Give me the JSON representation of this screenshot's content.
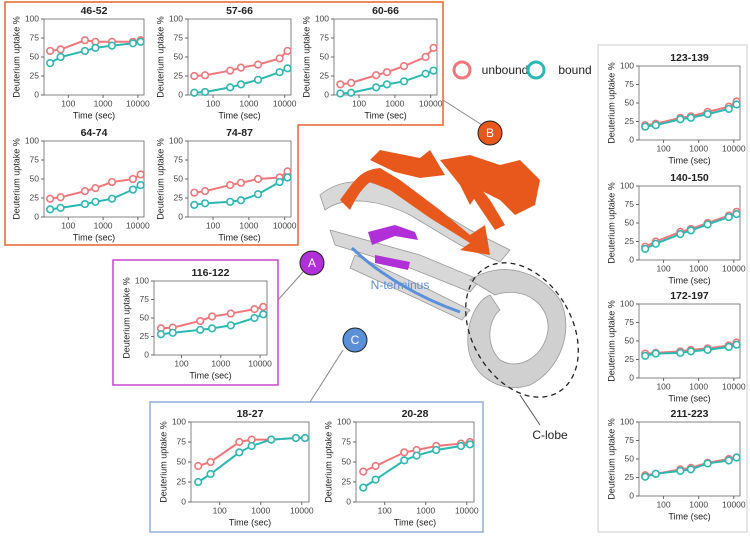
{
  "chart_data": [
    {
      "type": "line",
      "title": "46-52",
      "xlabel": "Time (sec)",
      "ylabel": "Deuterium uptake %",
      "log_x": true,
      "x": [
        30,
        60,
        300,
        600,
        1800,
        7200,
        12000
      ],
      "xlim": [
        20,
        15000
      ],
      "xticks": [
        100,
        1000,
        10000
      ],
      "ylim": [
        0,
        100
      ],
      "yticks": [
        0,
        25,
        50,
        75,
        100
      ],
      "series": [
        {
          "name": "unbound",
          "color": "#f0767a",
          "values": [
            58,
            60,
            72,
            70,
            70,
            70,
            72
          ]
        },
        {
          "name": "bound",
          "color": "#2bb8b2",
          "values": [
            42,
            50,
            58,
            62,
            65,
            68,
            70
          ]
        }
      ]
    },
    {
      "type": "line",
      "title": "57-66",
      "xlabel": "Time (sec)",
      "ylabel": "Deuterium uptake %",
      "log_x": true,
      "x": [
        30,
        60,
        300,
        600,
        1800,
        7200,
        12000
      ],
      "xlim": [
        20,
        15000
      ],
      "xticks": [
        100,
        1000,
        10000
      ],
      "ylim": [
        0,
        100
      ],
      "yticks": [
        0,
        25,
        50,
        75,
        100
      ],
      "series": [
        {
          "name": "unbound",
          "color": "#f0767a",
          "values": [
            25,
            26,
            32,
            36,
            40,
            48,
            58
          ]
        },
        {
          "name": "bound",
          "color": "#2bb8b2",
          "values": [
            3,
            4,
            10,
            14,
            20,
            30,
            35
          ]
        }
      ]
    },
    {
      "type": "line",
      "title": "60-66",
      "xlabel": "Time (sec)",
      "ylabel": "Deuterium uptake %",
      "log_x": true,
      "x": [
        30,
        60,
        300,
        600,
        1800,
        7200,
        12000
      ],
      "xlim": [
        20,
        15000
      ],
      "xticks": [
        100,
        1000,
        10000
      ],
      "ylim": [
        0,
        100
      ],
      "yticks": [
        0,
        25,
        50,
        75,
        100
      ],
      "series": [
        {
          "name": "unbound",
          "color": "#f0767a",
          "values": [
            14,
            16,
            26,
            30,
            38,
            50,
            62
          ]
        },
        {
          "name": "bound",
          "color": "#2bb8b2",
          "values": [
            2,
            3,
            10,
            14,
            18,
            28,
            32
          ]
        }
      ]
    },
    {
      "type": "line",
      "title": "64-74",
      "xlabel": "Time (sec)",
      "ylabel": "Deuterium uptake %",
      "log_x": true,
      "x": [
        30,
        60,
        300,
        600,
        1800,
        7200,
        12000
      ],
      "xlim": [
        20,
        15000
      ],
      "xticks": [
        100,
        1000,
        10000
      ],
      "ylim": [
        0,
        100
      ],
      "yticks": [
        0,
        25,
        50,
        75,
        100
      ],
      "series": [
        {
          "name": "unbound",
          "color": "#f0767a",
          "values": [
            24,
            26,
            34,
            38,
            46,
            50,
            56
          ]
        },
        {
          "name": "bound",
          "color": "#2bb8b2",
          "values": [
            10,
            12,
            17,
            20,
            24,
            36,
            42
          ]
        }
      ]
    },
    {
      "type": "line",
      "title": "74-87",
      "xlabel": "Time (sec)",
      "ylabel": "Deuterium uptake %",
      "log_x": true,
      "x": [
        30,
        60,
        300,
        600,
        1800,
        7200,
        12000
      ],
      "xlim": [
        20,
        15000
      ],
      "xticks": [
        100,
        1000,
        10000
      ],
      "ylim": [
        0,
        100
      ],
      "yticks": [
        0,
        25,
        50,
        75,
        100
      ],
      "series": [
        {
          "name": "unbound",
          "color": "#f0767a",
          "values": [
            32,
            34,
            42,
            45,
            50,
            52,
            60
          ]
        },
        {
          "name": "bound",
          "color": "#2bb8b2",
          "values": [
            16,
            18,
            20,
            22,
            30,
            46,
            52
          ]
        }
      ]
    },
    {
      "type": "line",
      "title": "116-122",
      "xlabel": "Time (sec)",
      "ylabel": "Deuterium uptake %",
      "log_x": true,
      "x": [
        30,
        60,
        300,
        600,
        1800,
        7200,
        12000
      ],
      "xlim": [
        20,
        15000
      ],
      "xticks": [
        100,
        1000,
        10000
      ],
      "ylim": [
        0,
        100
      ],
      "yticks": [
        0,
        25,
        50,
        75,
        100
      ],
      "series": [
        {
          "name": "unbound",
          "color": "#f0767a",
          "values": [
            36,
            37,
            46,
            52,
            56,
            62,
            65
          ]
        },
        {
          "name": "bound",
          "color": "#2bb8b2",
          "values": [
            28,
            30,
            34,
            36,
            40,
            50,
            55
          ]
        }
      ]
    },
    {
      "type": "line",
      "title": "18-27",
      "xlabel": "Time (sec)",
      "ylabel": "Deuterium uptake %",
      "log_x": true,
      "x": [
        30,
        60,
        300,
        600,
        1800,
        7200,
        12000
      ],
      "xlim": [
        20,
        15000
      ],
      "xticks": [
        100,
        1000,
        10000
      ],
      "ylim": [
        0,
        100
      ],
      "yticks": [
        0,
        25,
        50,
        75,
        100
      ],
      "series": [
        {
          "name": "unbound",
          "color": "#f0767a",
          "values": [
            45,
            50,
            75,
            78,
            78,
            80,
            80
          ]
        },
        {
          "name": "bound",
          "color": "#2bb8b2",
          "values": [
            25,
            35,
            62,
            70,
            78,
            80,
            80
          ]
        }
      ]
    },
    {
      "type": "line",
      "title": "20-28",
      "xlabel": "Time (sec)",
      "ylabel": "Deuterium uptake %",
      "log_x": true,
      "x": [
        30,
        60,
        300,
        600,
        1800,
        7200,
        12000
      ],
      "xlim": [
        20,
        15000
      ],
      "xticks": [
        100,
        1000,
        10000
      ],
      "ylim": [
        0,
        100
      ],
      "yticks": [
        0,
        25,
        50,
        75,
        100
      ],
      "series": [
        {
          "name": "unbound",
          "color": "#f0767a",
          "values": [
            38,
            45,
            62,
            65,
            70,
            73,
            75
          ]
        },
        {
          "name": "bound",
          "color": "#2bb8b2",
          "values": [
            18,
            28,
            52,
            58,
            65,
            70,
            72
          ]
        }
      ]
    },
    {
      "type": "line",
      "title": "123-139",
      "xlabel": "Time (sec)",
      "ylabel": "Deuterium uptake %",
      "log_x": true,
      "x": [
        30,
        60,
        300,
        600,
        1800,
        7200,
        12000
      ],
      "xlim": [
        20,
        15000
      ],
      "xticks": [
        100,
        1000,
        10000
      ],
      "ylim": [
        0,
        100
      ],
      "yticks": [
        0,
        25,
        50,
        75,
        100
      ],
      "series": [
        {
          "name": "unbound",
          "color": "#f0767a",
          "values": [
            20,
            22,
            30,
            32,
            38,
            45,
            52
          ]
        },
        {
          "name": "bound",
          "color": "#2bb8b2",
          "values": [
            18,
            20,
            28,
            30,
            35,
            42,
            48
          ]
        }
      ]
    },
    {
      "type": "line",
      "title": "140-150",
      "xlabel": "Time (sec)",
      "ylabel": "Deuterium uptake %",
      "log_x": true,
      "x": [
        30,
        60,
        300,
        600,
        1800,
        7200,
        12000
      ],
      "xlim": [
        20,
        15000
      ],
      "xticks": [
        100,
        1000,
        10000
      ],
      "ylim": [
        0,
        100
      ],
      "yticks": [
        0,
        25,
        50,
        75,
        100
      ],
      "series": [
        {
          "name": "unbound",
          "color": "#f0767a",
          "values": [
            18,
            25,
            38,
            42,
            50,
            60,
            65
          ]
        },
        {
          "name": "bound",
          "color": "#2bb8b2",
          "values": [
            15,
            22,
            35,
            40,
            48,
            58,
            62
          ]
        }
      ]
    },
    {
      "type": "line",
      "title": "172-197",
      "xlabel": "Time (sec)",
      "ylabel": "Deuterium uptake %",
      "log_x": true,
      "x": [
        30,
        60,
        300,
        600,
        1800,
        7200,
        12000
      ],
      "xlim": [
        20,
        15000
      ],
      "xticks": [
        100,
        1000,
        10000
      ],
      "ylim": [
        0,
        100
      ],
      "yticks": [
        0,
        25,
        50,
        75,
        100
      ],
      "series": [
        {
          "name": "unbound",
          "color": "#f0767a",
          "values": [
            33,
            34,
            36,
            38,
            40,
            44,
            48
          ]
        },
        {
          "name": "bound",
          "color": "#2bb8b2",
          "values": [
            30,
            33,
            34,
            36,
            38,
            42,
            45
          ]
        }
      ]
    },
    {
      "type": "line",
      "title": "211-223",
      "xlabel": "Time (sec)",
      "ylabel": "Deuterium uptake %",
      "log_x": true,
      "x": [
        30,
        60,
        300,
        600,
        1800,
        7200,
        12000
      ],
      "xlim": [
        20,
        15000
      ],
      "xticks": [
        100,
        1000,
        10000
      ],
      "ylim": [
        0,
        100
      ],
      "yticks": [
        0,
        25,
        50,
        75,
        100
      ],
      "series": [
        {
          "name": "unbound",
          "color": "#f0767a",
          "values": [
            28,
            30,
            36,
            38,
            45,
            50,
            52
          ]
        },
        {
          "name": "bound",
          "color": "#2bb8b2",
          "values": [
            26,
            30,
            34,
            36,
            44,
            48,
            52
          ]
        }
      ]
    }
  ],
  "labels": {
    "panel_a": "A",
    "panel_b": "B",
    "panel_c": "C",
    "n_terminus": "N-terminus",
    "c_lobe": "C-lobe"
  }
}
